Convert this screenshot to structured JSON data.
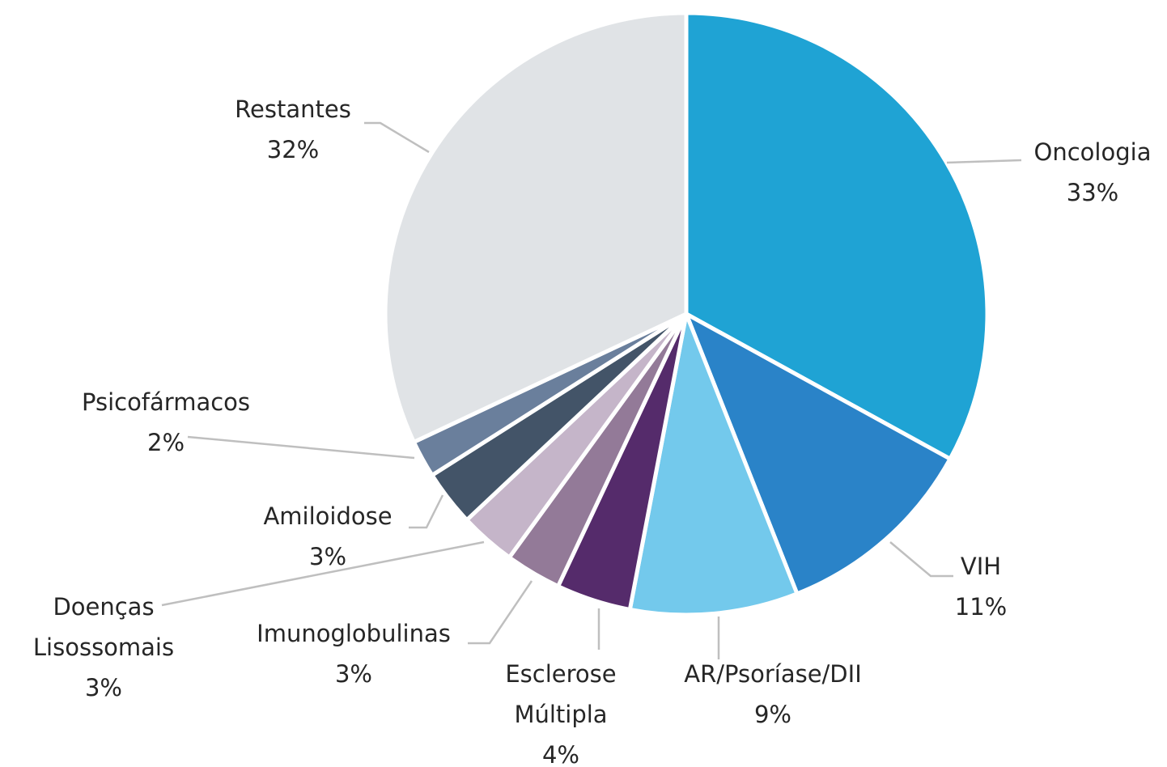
{
  "chart_data": {
    "type": "pie",
    "categories": [
      "Oncologia",
      "VIH",
      "AR/Psoríase/DII",
      "Esclerose Múltipla",
      "Imunoglobulinas",
      "Doenças Lisossomais",
      "Amiloidose",
      "Psicofármacos",
      "Restantes"
    ],
    "values": [
      33,
      11,
      9,
      4,
      3,
      3,
      3,
      2,
      32
    ],
    "value_labels": [
      "33%",
      "11%",
      "9%",
      "4%",
      "3%",
      "3%",
      "3%",
      "2%",
      "32%"
    ],
    "colors": [
      "#1fa3d4",
      "#2a83c8",
      "#73c9ec",
      "#552b6b",
      "#937a98",
      "#c5b5c9",
      "#435468",
      "#6a7f9c",
      "#e0e3e6"
    ]
  }
}
